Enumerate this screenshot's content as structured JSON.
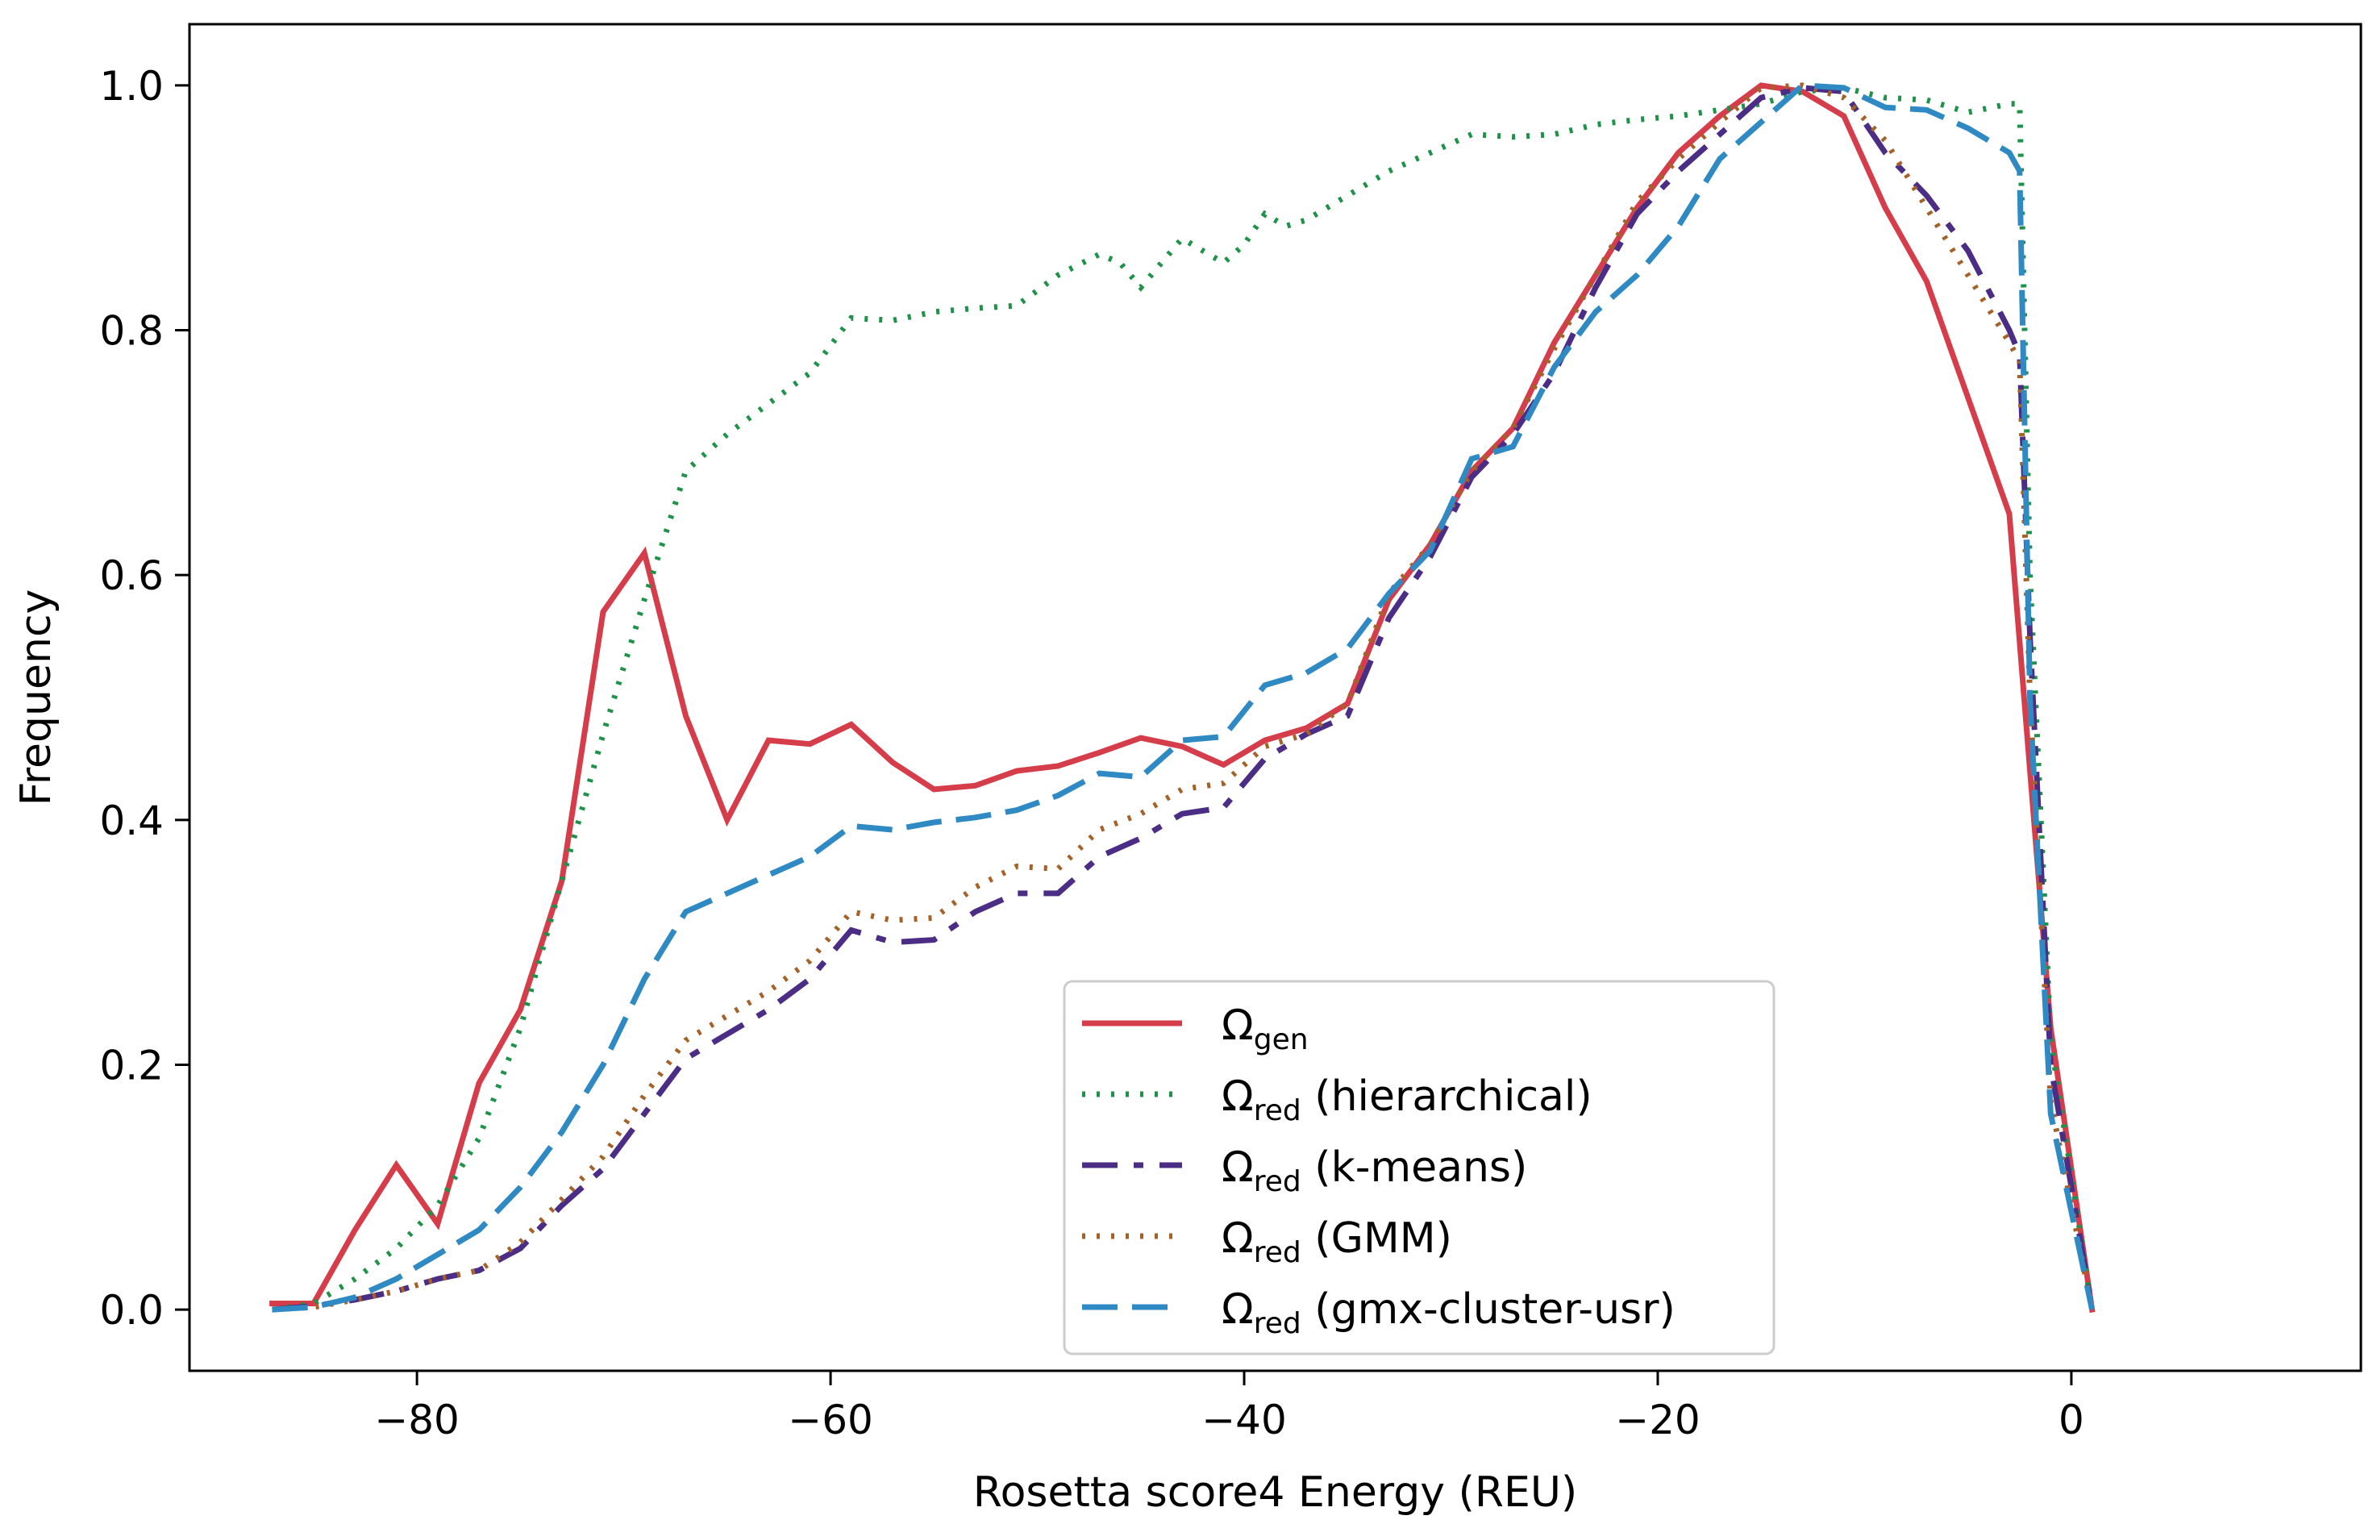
{
  "chart_data": {
    "type": "line",
    "title": "",
    "xlabel": "Rosetta score4 Energy (REU)",
    "ylabel": "Frequency",
    "xlim": [
      -91,
      14
    ],
    "ylim": [
      -0.05,
      1.05
    ],
    "xticks": [
      -80,
      -60,
      -40,
      -20,
      0
    ],
    "xtick_labels": [
      "−80",
      "−60",
      "−40",
      "−20",
      "0"
    ],
    "yticks": [
      0.0,
      0.2,
      0.4,
      0.6,
      0.8,
      1.0
    ],
    "ytick_labels": [
      "0.0",
      "0.2",
      "0.4",
      "0.6",
      "0.8",
      "1.0"
    ],
    "grid": false,
    "legend_position": "lower-center",
    "series": [
      {
        "key": "gen",
        "name": "Ωgen",
        "legend_main": "Ω",
        "legend_sub": "gen",
        "legend_suffix": "",
        "color": "#d63d4a",
        "style": "solid",
        "x": [
          -87,
          -85,
          -83,
          -81,
          -79,
          -77,
          -75,
          -73,
          -71,
          -69,
          -67,
          -65,
          -63,
          -61,
          -59,
          -57,
          -55,
          -53,
          -51,
          -49,
          -47,
          -45,
          -43,
          -41,
          -39,
          -37,
          -35,
          -33,
          -31,
          -29,
          -27,
          -25,
          -23,
          -21,
          -19,
          -17,
          -15,
          -13,
          -11,
          -9,
          -7,
          -5,
          -3,
          -1,
          1
        ],
        "y": [
          0.005,
          0.005,
          0.065,
          0.118,
          0.07,
          0.185,
          0.245,
          0.35,
          0.57,
          0.618,
          0.485,
          0.4,
          0.465,
          0.462,
          0.478,
          0.447,
          0.425,
          0.428,
          0.44,
          0.444,
          0.455,
          0.467,
          0.46,
          0.445,
          0.465,
          0.475,
          0.495,
          0.58,
          0.625,
          0.685,
          0.72,
          0.79,
          0.845,
          0.9,
          0.945,
          0.975,
          1.0,
          0.995,
          0.975,
          0.9,
          0.84,
          0.745,
          0.65,
          0.23,
          0.0
        ]
      },
      {
        "key": "hier",
        "name": "Ωred (hierarchical)",
        "legend_main": "Ω",
        "legend_sub": "red",
        "legend_suffix": " (hierarchical)",
        "color": "#1f9249",
        "style": "dotted",
        "x": [
          -87,
          -85,
          -83,
          -81,
          -79,
          -77,
          -75,
          -73,
          -71,
          -69,
          -67,
          -65,
          -63,
          -61,
          -59,
          -57,
          -55,
          -53,
          -51,
          -49,
          -47,
          -46,
          -45,
          -44,
          -43,
          -42,
          -41,
          -40,
          -39,
          -38,
          -37,
          -35,
          -33,
          -31,
          -29,
          -27,
          -25,
          -23,
          -21,
          -19,
          -17,
          -15,
          -13,
          -11,
          -9,
          -7,
          -5,
          -3,
          -2.5,
          -2,
          -1,
          1
        ],
        "y": [
          0.0,
          0.005,
          0.025,
          0.05,
          0.085,
          0.14,
          0.23,
          0.35,
          0.47,
          0.58,
          0.685,
          0.715,
          0.74,
          0.765,
          0.81,
          0.808,
          0.815,
          0.818,
          0.82,
          0.845,
          0.862,
          0.855,
          0.835,
          0.855,
          0.875,
          0.865,
          0.855,
          0.87,
          0.895,
          0.885,
          0.89,
          0.91,
          0.93,
          0.945,
          0.96,
          0.958,
          0.96,
          0.968,
          0.972,
          0.975,
          0.98,
          0.985,
          0.995,
          0.998,
          0.99,
          0.988,
          0.978,
          0.985,
          0.985,
          0.6,
          0.22,
          0.0
        ]
      },
      {
        "key": "km",
        "name": "Ωred (k-means)",
        "legend_main": "Ω",
        "legend_sub": "red",
        "legend_suffix": " (k-means)",
        "color": "#4b2d85",
        "style": "dashdot",
        "x": [
          -87,
          -85,
          -83,
          -81,
          -79,
          -77,
          -75,
          -73,
          -71,
          -69,
          -67,
          -65,
          -63,
          -61,
          -59,
          -57,
          -55,
          -53,
          -51,
          -49,
          -47,
          -45,
          -43,
          -41,
          -39,
          -37,
          -35,
          -33,
          -31,
          -29,
          -27,
          -25,
          -23,
          -21,
          -19,
          -17,
          -15,
          -13,
          -11,
          -9,
          -7,
          -5,
          -3,
          -2.5,
          -2,
          -1,
          1
        ],
        "y": [
          0.0,
          0.003,
          0.008,
          0.015,
          0.025,
          0.032,
          0.05,
          0.085,
          0.115,
          0.16,
          0.205,
          0.225,
          0.245,
          0.27,
          0.31,
          0.3,
          0.302,
          0.325,
          0.34,
          0.34,
          0.37,
          0.385,
          0.405,
          0.41,
          0.45,
          0.47,
          0.485,
          0.565,
          0.615,
          0.68,
          0.715,
          0.765,
          0.835,
          0.895,
          0.93,
          0.96,
          0.99,
          0.998,
          0.995,
          0.945,
          0.91,
          0.865,
          0.8,
          0.78,
          0.55,
          0.2,
          0.0
        ]
      },
      {
        "key": "gmm",
        "name": "Ωred (GMM)",
        "legend_main": "Ω",
        "legend_sub": "red",
        "legend_suffix": " (GMM)",
        "color": "#a56228",
        "style": "dotted",
        "x": [
          -87,
          -85,
          -83,
          -81,
          -79,
          -77,
          -75,
          -73,
          -71,
          -69,
          -67,
          -65,
          -63,
          -61,
          -59,
          -57,
          -55,
          -53,
          -51,
          -49,
          -47,
          -45,
          -43,
          -41,
          -39,
          -37,
          -35,
          -33,
          -31,
          -29,
          -27,
          -25,
          -23,
          -21,
          -19,
          -17,
          -15,
          -13,
          -11,
          -9,
          -7,
          -5,
          -3,
          -2.5,
          -2,
          -1,
          1
        ],
        "y": [
          0.0,
          0.002,
          0.008,
          0.015,
          0.025,
          0.032,
          0.055,
          0.09,
          0.125,
          0.175,
          0.22,
          0.24,
          0.26,
          0.285,
          0.325,
          0.318,
          0.32,
          0.345,
          0.362,
          0.36,
          0.392,
          0.405,
          0.425,
          0.43,
          0.46,
          0.47,
          0.495,
          0.585,
          0.625,
          0.685,
          0.72,
          0.785,
          0.845,
          0.905,
          0.94,
          0.97,
          0.998,
          1.0,
          0.99,
          0.955,
          0.9,
          0.845,
          0.79,
          0.775,
          0.5,
          0.17,
          0.0
        ]
      },
      {
        "key": "gmx",
        "name": "Ωred (gmx-cluster-usr)",
        "legend_main": "Ω",
        "legend_sub": "red",
        "legend_suffix": " (gmx-cluster-usr)",
        "color": "#2f8ac4",
        "style": "dashed",
        "x": [
          -87,
          -85,
          -83,
          -81,
          -79,
          -77,
          -75,
          -73,
          -71,
          -69,
          -67,
          -65,
          -63,
          -61,
          -59,
          -57,
          -55,
          -53,
          -51,
          -49,
          -47,
          -45,
          -43,
          -41,
          -39,
          -37,
          -35,
          -33,
          -31,
          -29,
          -27,
          -25,
          -23,
          -21,
          -19,
          -17,
          -15,
          -13,
          -11,
          -9,
          -7,
          -5,
          -3,
          -2.5,
          -2,
          -1,
          1
        ],
        "y": [
          0.0,
          0.002,
          0.01,
          0.025,
          0.045,
          0.065,
          0.1,
          0.145,
          0.2,
          0.27,
          0.325,
          0.34,
          0.355,
          0.37,
          0.395,
          0.392,
          0.398,
          0.402,
          0.408,
          0.42,
          0.438,
          0.435,
          0.465,
          0.468,
          0.51,
          0.52,
          0.54,
          0.585,
          0.62,
          0.695,
          0.705,
          0.77,
          0.815,
          0.845,
          0.885,
          0.94,
          0.97,
          1.0,
          0.998,
          0.982,
          0.98,
          0.965,
          0.945,
          0.93,
          0.5,
          0.16,
          0.0
        ]
      }
    ]
  }
}
